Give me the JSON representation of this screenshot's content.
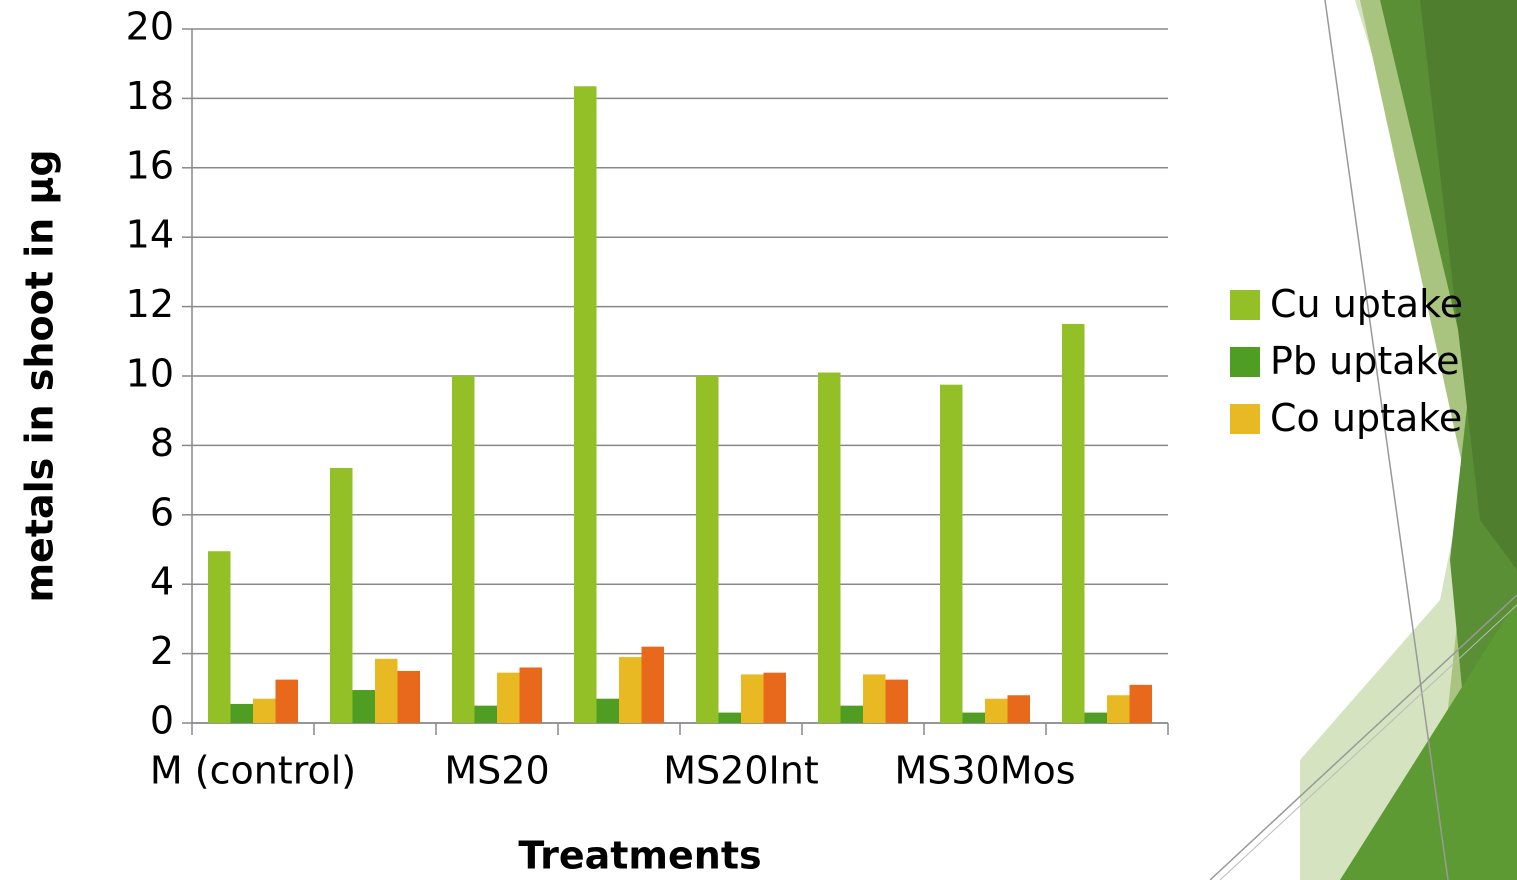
{
  "chart_data": {
    "type": "bar",
    "x_label": "Treatments",
    "y_label": "metals in shoot in µg",
    "categories": [
      "M (control)",
      null,
      "MS20",
      null,
      "MS20Int",
      null,
      "MS30Mos",
      null
    ],
    "series": [
      {
        "name": "Cu uptake",
        "color": "#93c027",
        "values": [
          4.95,
          7.35,
          10.0,
          18.35,
          10.0,
          10.1,
          9.75,
          11.5
        ]
      },
      {
        "name": "Pb uptake",
        "color": "#4f9e23",
        "values": [
          0.55,
          0.95,
          0.5,
          0.7,
          0.3,
          0.5,
          0.3,
          0.3
        ]
      },
      {
        "name": "Co uptake",
        "color": "#e8b923",
        "values": [
          0.7,
          1.85,
          1.45,
          1.9,
          1.4,
          1.4,
          0.7,
          0.8
        ]
      },
      {
        "color": "#e8691b",
        "values": [
          1.25,
          1.5,
          1.6,
          2.2,
          1.45,
          1.25,
          0.8,
          1.1
        ]
      }
    ],
    "ylim": [
      0,
      20
    ],
    "yticks": [
      0,
      2,
      4,
      6,
      8,
      10,
      12,
      14,
      16,
      18,
      20
    ],
    "grid": true
  }
}
